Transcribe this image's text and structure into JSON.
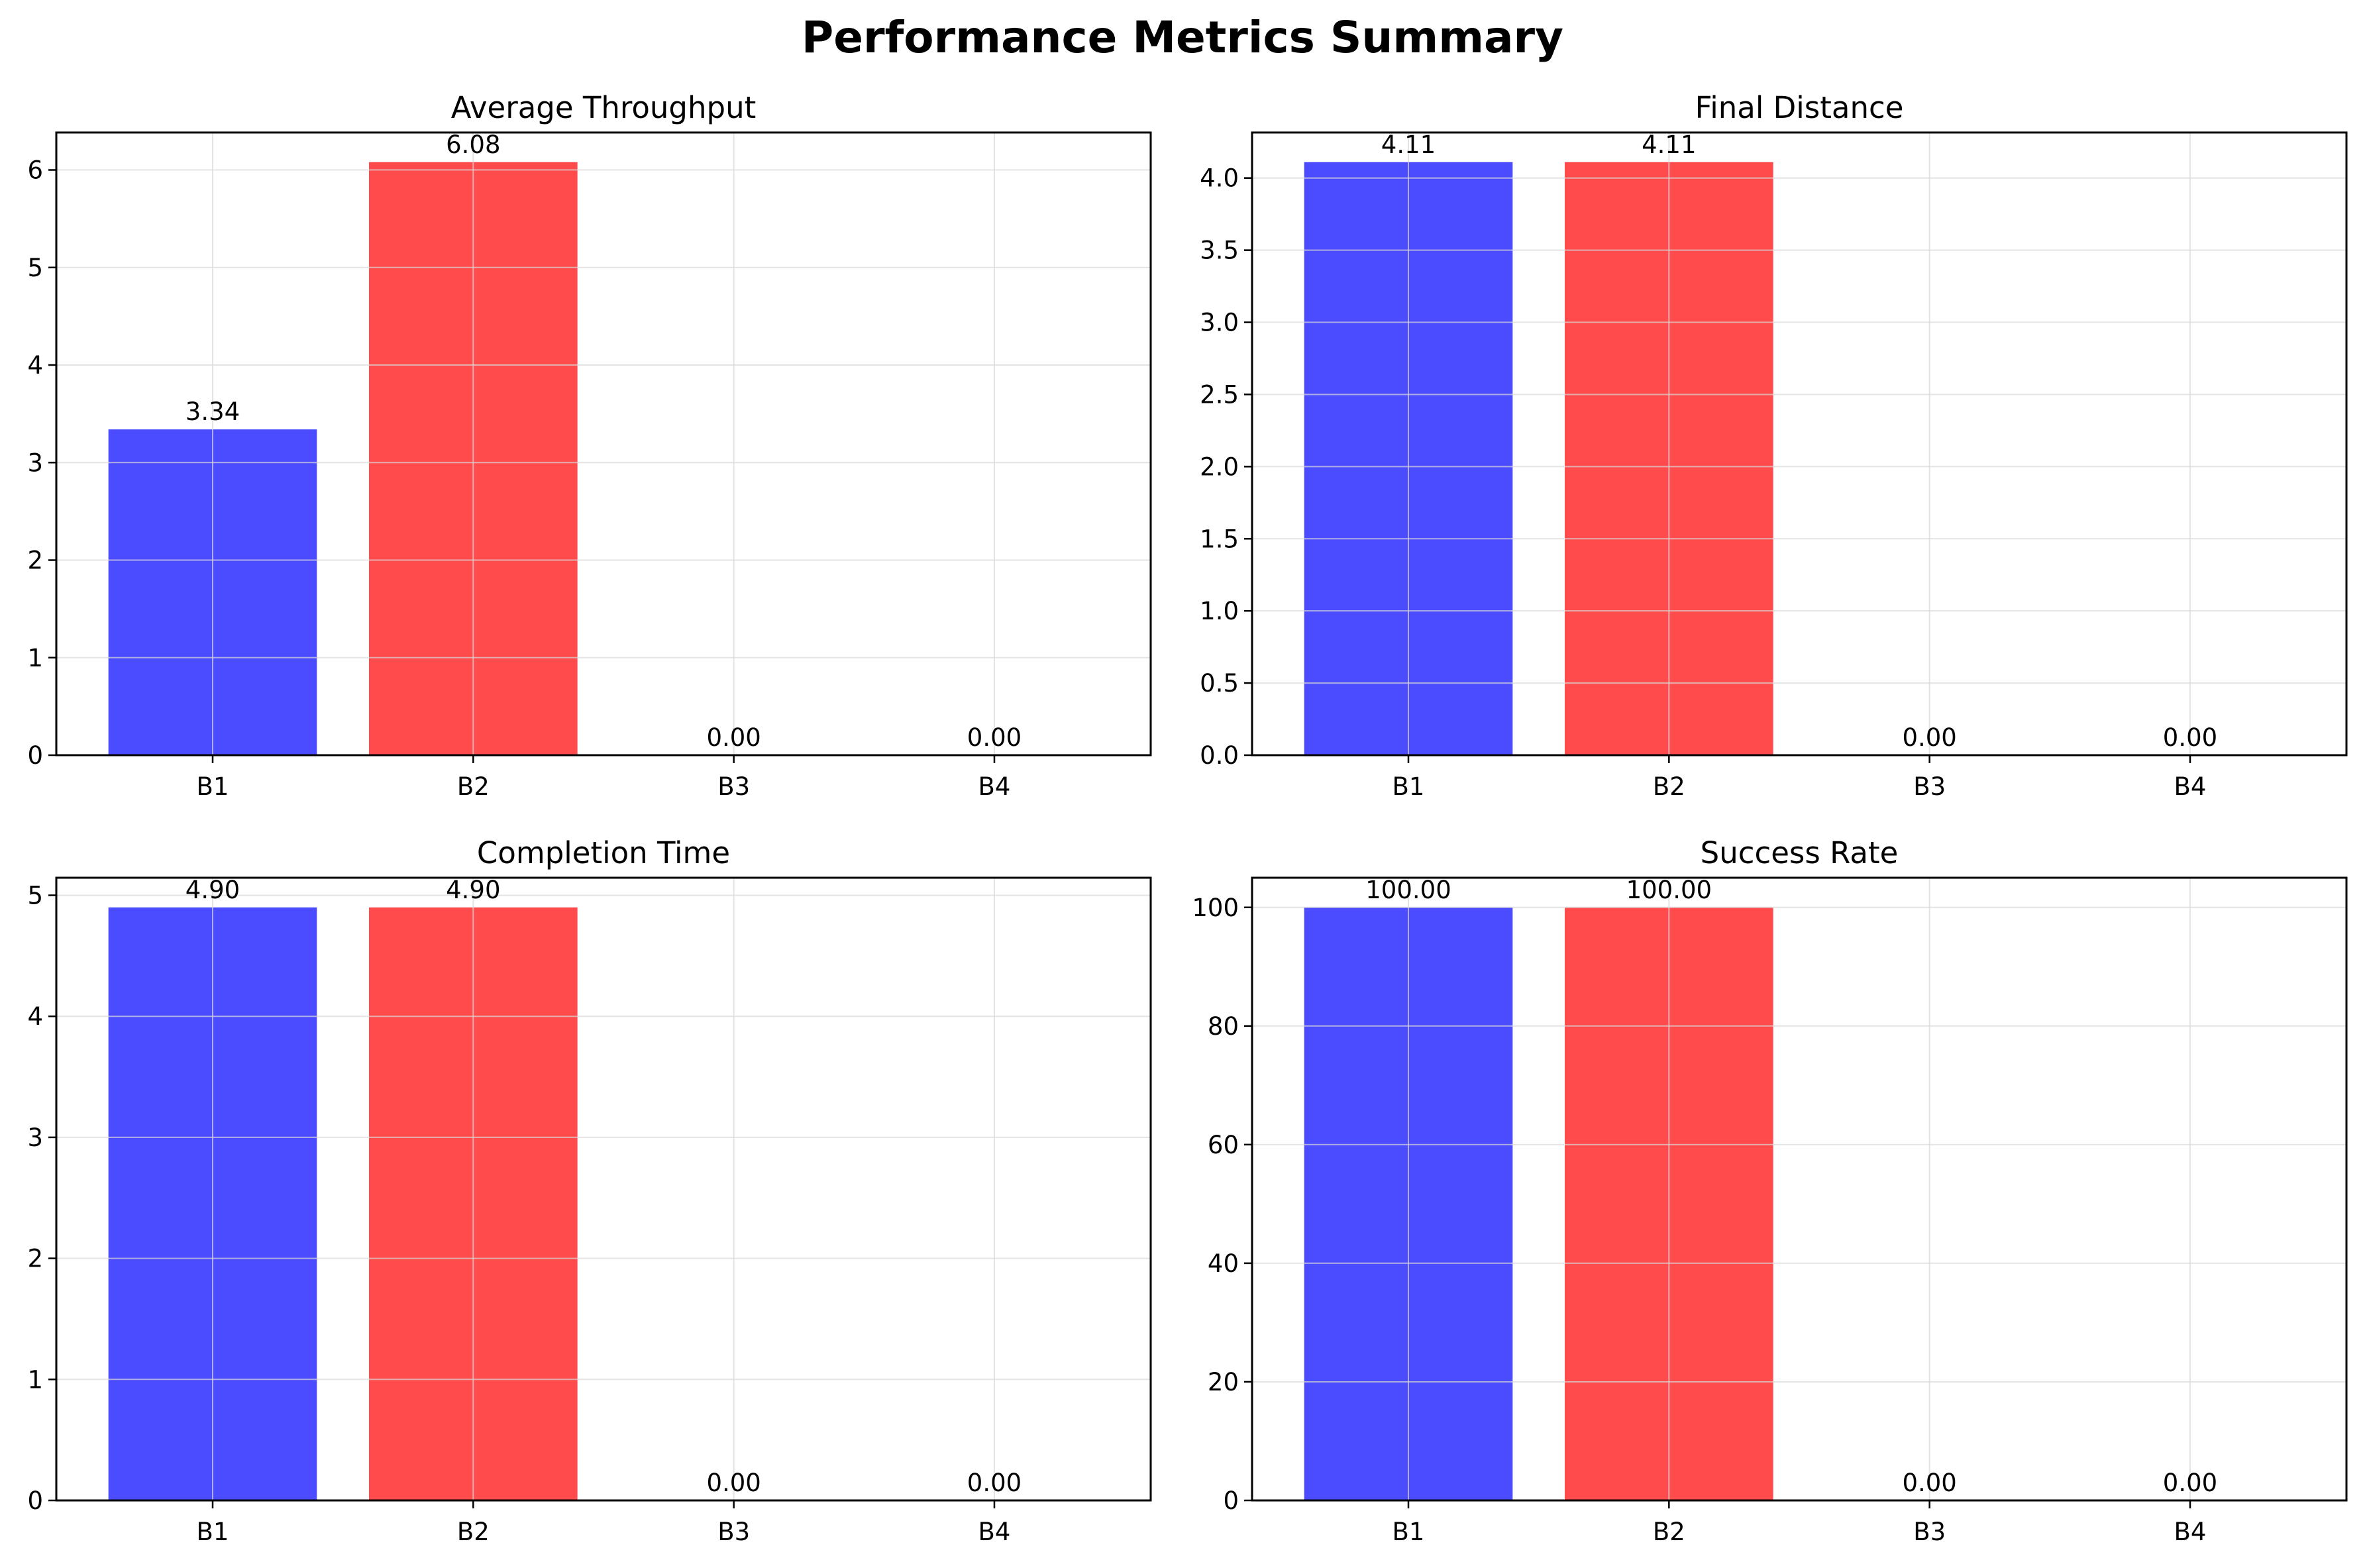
{
  "title": "Performance Metrics Summary",
  "colors": {
    "B1": "#4b4bff",
    "B2": "#ff4b4b",
    "grid": "#d8d8d8",
    "axis": "#000000"
  },
  "chart_data": [
    {
      "type": "bar",
      "title": "Average Throughput",
      "categories": [
        "B1",
        "B2",
        "B3",
        "B4"
      ],
      "values": [
        3.34,
        6.08,
        0.0,
        0.0
      ],
      "labels": [
        "3.34",
        "6.08",
        "0.00",
        "0.00"
      ],
      "ylim": [
        0,
        6.384
      ],
      "yticks": [
        0,
        1,
        2,
        3,
        4,
        5,
        6
      ],
      "ytick_labels": [
        "0",
        "1",
        "2",
        "3",
        "4",
        "5",
        "6"
      ],
      "grid": true
    },
    {
      "type": "bar",
      "title": "Final Distance",
      "categories": [
        "B1",
        "B2",
        "B3",
        "B4"
      ],
      "values": [
        4.11,
        4.11,
        0.0,
        0.0
      ],
      "labels": [
        "4.11",
        "4.11",
        "0.00",
        "0.00"
      ],
      "ylim": [
        0,
        4.3155
      ],
      "yticks": [
        0,
        0.5,
        1,
        1.5,
        2,
        2.5,
        3,
        3.5,
        4
      ],
      "ytick_labels": [
        "0.0",
        "0.5",
        "1.0",
        "1.5",
        "2.0",
        "2.5",
        "3.0",
        "3.5",
        "4.0"
      ],
      "grid": true
    },
    {
      "type": "bar",
      "title": "Completion Time",
      "categories": [
        "B1",
        "B2",
        "B3",
        "B4"
      ],
      "values": [
        4.9,
        4.9,
        0.0,
        0.0
      ],
      "labels": [
        "4.90",
        "4.90",
        "0.00",
        "0.00"
      ],
      "ylim": [
        0,
        5.145
      ],
      "yticks": [
        0,
        1,
        2,
        3,
        4,
        5
      ],
      "ytick_labels": [
        "0",
        "1",
        "2",
        "3",
        "4",
        "5"
      ],
      "grid": true
    },
    {
      "type": "bar",
      "title": "Success Rate",
      "categories": [
        "B1",
        "B2",
        "B3",
        "B4"
      ],
      "values": [
        100.0,
        100.0,
        0.0,
        0.0
      ],
      "labels": [
        "100.00",
        "100.00",
        "0.00",
        "0.00"
      ],
      "ylim": [
        0,
        105
      ],
      "yticks": [
        0,
        20,
        40,
        60,
        80,
        100
      ],
      "ytick_labels": [
        "0",
        "20",
        "40",
        "60",
        "80",
        "100"
      ],
      "grid": true
    }
  ]
}
